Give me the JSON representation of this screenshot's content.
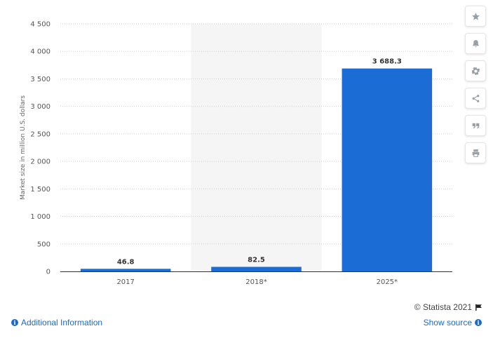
{
  "chart_data": {
    "type": "bar",
    "categories": [
      "2017",
      "2018*",
      "2025*"
    ],
    "values": [
      46.8,
      82.5,
      3688.3
    ],
    "value_labels": [
      "46.8",
      "82.5",
      "3 688.3"
    ],
    "ylabel": "Market size in million U.S. dollars",
    "xlabel": "",
    "ylim": [
      0,
      4500
    ],
    "yticks": [
      0,
      500,
      1000,
      1500,
      2000,
      2500,
      3000,
      3500,
      4000,
      4500
    ],
    "ytick_labels": [
      "0",
      "500",
      "1 000",
      "1 500",
      "2 000",
      "2 500",
      "3 000",
      "3 500",
      "4 000",
      "4 500"
    ],
    "highlighted_category": "2018*",
    "grid": true,
    "bar_color": "#1b6cd4",
    "highlight_color": "#f5f5f5"
  },
  "toolbar": {
    "icons": [
      "star-icon",
      "bell-icon",
      "gear-icon",
      "share-icon",
      "quote-icon",
      "print-icon"
    ]
  },
  "footer": {
    "credit": "© Statista 2021",
    "additional_info": "Additional Information",
    "show_source": "Show source"
  }
}
